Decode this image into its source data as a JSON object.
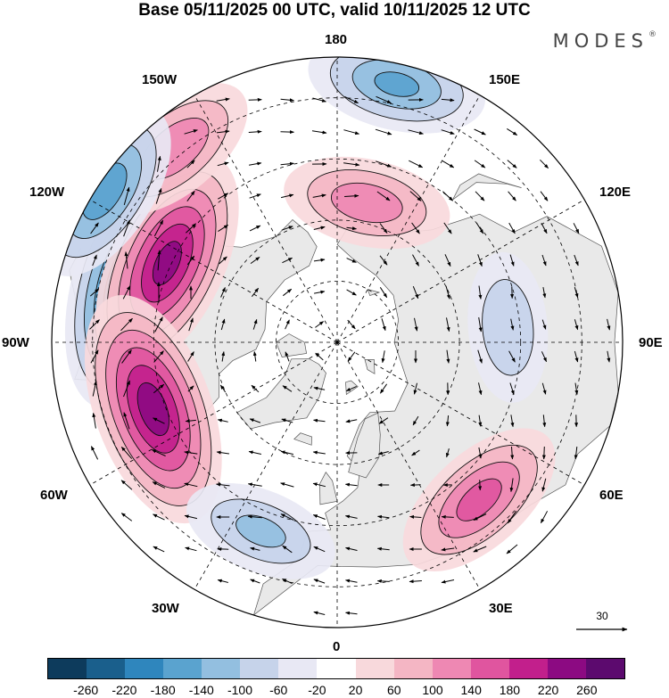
{
  "title": "Base 05/11/2025 00 UTC, valid 10/11/2025 12 UTC",
  "brand": "MODES",
  "brand_mark": "®",
  "longitude_labels": {
    "top": "180",
    "bottom": "0",
    "left": "90W",
    "right": "90E",
    "upper_left": "150W",
    "upper_left2": "120W",
    "upper_right": "150E",
    "upper_right2": "120E",
    "lower_left": "60W",
    "lower_left2": "30W",
    "lower_right": "60E",
    "lower_right2": "30E"
  },
  "reference_vector": "30",
  "colorbar": {
    "colors": [
      "#0d3b5c",
      "#1a5f8c",
      "#2f86bd",
      "#5aa3cf",
      "#93bfe0",
      "#c6d3ea",
      "#e8e8f4",
      "#ffffff",
      "#f8d9dc",
      "#f4b6c4",
      "#ee88b3",
      "#e0559f",
      "#c21f8c",
      "#8c0a82",
      "#5c0a6e"
    ],
    "ticks": [
      "-260",
      "-220",
      "-180",
      "-140",
      "-100",
      "-60",
      "-20",
      "20",
      "60",
      "100",
      "140",
      "180",
      "220",
      "260"
    ]
  },
  "colors": {
    "land_fill": "#e9e9e9",
    "ocean_fill": "#ffffff",
    "grid": "#000000"
  },
  "anomaly_centers": [
    {
      "lon": -105,
      "lat": 38,
      "value": -260
    },
    {
      "lon": -115,
      "lat": 44,
      "value": 230
    },
    {
      "lon": -70,
      "lat": 42,
      "value": 240
    },
    {
      "lon": -140,
      "lat": 28,
      "value": 130
    },
    {
      "lon": -123,
      "lat": 22,
      "value": -160
    },
    {
      "lon": 167,
      "lat": 25,
      "value": -140
    },
    {
      "lon": 168,
      "lat": 55,
      "value": 120
    },
    {
      "lon": 95,
      "lat": 48,
      "value": -90
    },
    {
      "lon": 42,
      "lat": 38,
      "value": 150
    },
    {
      "lon": -22,
      "lat": 40,
      "value": -100
    }
  ]
}
